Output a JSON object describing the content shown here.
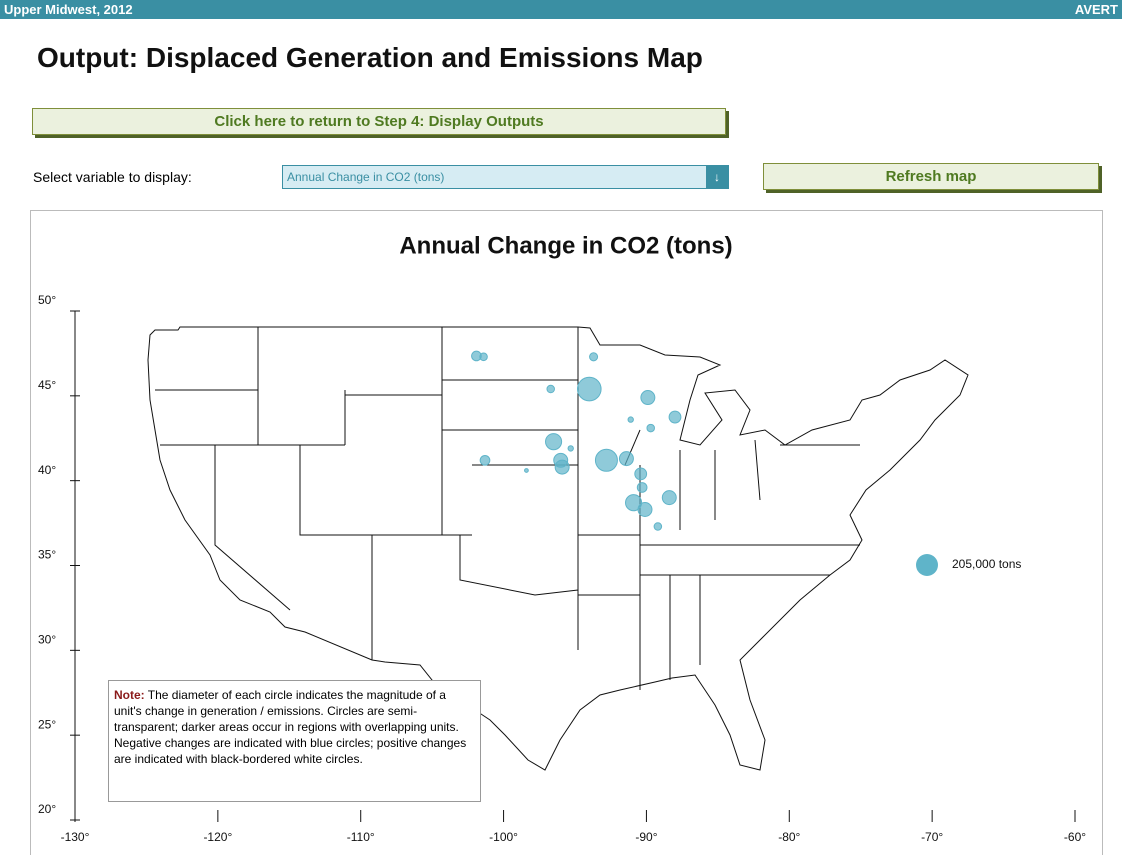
{
  "header": {
    "region": "Upper Midwest, 2012",
    "brand": "AVERT"
  },
  "title": "Output: Displaced Generation and Emissions Map",
  "return_button": "Click here to return to Step 4: Display Outputs",
  "select_label": "Select variable to display:",
  "select_value": "Annual Change in CO2 (tons)",
  "refresh_button": "Refresh map",
  "chart_data": {
    "type": "scatter",
    "title": "Annual Change in CO2 (tons)",
    "x": [
      -101.9,
      -101.4,
      -94.0,
      -93.7,
      -89.9,
      -88.0,
      -96.5,
      -96.0,
      -95.9,
      -92.8,
      -91.4,
      -90.4,
      -101.3,
      -90.9,
      -90.1,
      -88.4,
      -96.7,
      -91.1,
      -89.2,
      -89.7,
      -98.4,
      -90.3,
      -95.3
    ],
    "values": [
      47.35,
      47.3,
      45.4,
      47.3,
      44.9,
      43.75,
      42.3,
      41.2,
      40.8,
      41.2,
      41.3,
      40.4,
      41.2,
      38.7,
      38.3,
      39.0,
      45.4,
      43.6,
      37.3,
      43.1,
      40.6,
      39.6,
      41.9
    ],
    "sizes": [
      90000,
      70000,
      220000,
      75000,
      130000,
      110000,
      150000,
      130000,
      130000,
      205000,
      130000,
      110000,
      90000,
      150000,
      130000,
      130000,
      70000,
      50000,
      70000,
      70000,
      35000,
      90000,
      50000
    ],
    "color": "#5fb4c9",
    "size_legend": {
      "value": 205000,
      "label": "205,000 tons"
    },
    "xlim": [
      -130,
      -60
    ],
    "ylim": [
      20,
      50
    ],
    "xticks": [
      {
        "value": -130,
        "label": "-130°"
      },
      {
        "value": -120,
        "label": "-120°"
      },
      {
        "value": -110,
        "label": "-110°"
      },
      {
        "value": -100,
        "label": "-100°"
      },
      {
        "value": -90,
        "label": "-90°"
      },
      {
        "value": -80,
        "label": "-80°"
      },
      {
        "value": -70,
        "label": "-70°"
      },
      {
        "value": -60,
        "label": "-60°"
      }
    ],
    "yticks": [
      {
        "value": 20,
        "label": "20°"
      },
      {
        "value": 25,
        "label": "25°"
      },
      {
        "value": 30,
        "label": "30°"
      },
      {
        "value": 35,
        "label": "35°"
      },
      {
        "value": 40,
        "label": "40°"
      },
      {
        "value": 45,
        "label": "45°"
      },
      {
        "value": 50,
        "label": "50°"
      }
    ],
    "note_label": "Note:",
    "note": "The diameter of each circle indicates the magnitude of a unit's change in generation / emissions. Circles are semi-transparent; darker areas occur in regions with overlapping units. Negative changes are indicated with blue circles; positive changes are indicated with black-bordered white circles."
  }
}
